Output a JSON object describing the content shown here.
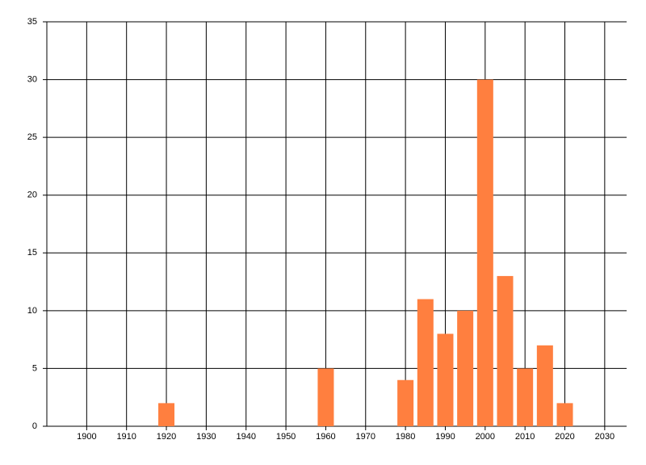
{
  "chart_data": {
    "type": "bar",
    "x": [
      1920,
      1960,
      1980,
      1985,
      1990,
      1995,
      2000,
      2005,
      2010,
      2015,
      2020
    ],
    "values": [
      2,
      5,
      4,
      11,
      8,
      10,
      30,
      13,
      5,
      7,
      2
    ],
    "color": "#ff7f3f",
    "xlim": [
      1890,
      2035.5
    ],
    "xticks": [
      1900,
      1910,
      1920,
      1930,
      1940,
      1950,
      1960,
      1970,
      1980,
      1990,
      2000,
      2010,
      2020,
      2030
    ],
    "ylim": [
      0,
      35
    ],
    "yticks": [
      0,
      5,
      10,
      15,
      20,
      25,
      30,
      35
    ],
    "grid": true
  }
}
